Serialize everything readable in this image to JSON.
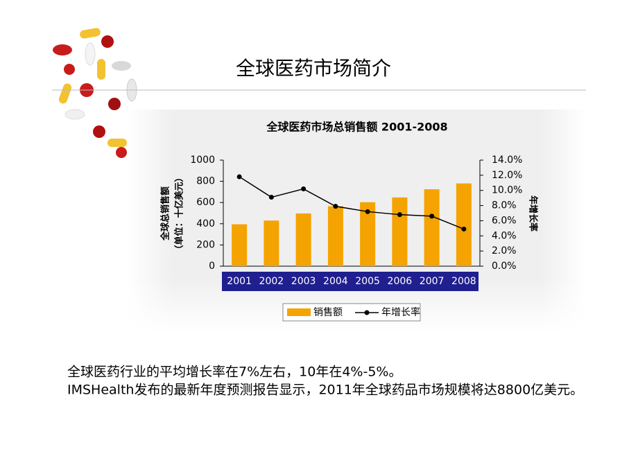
{
  "slide_title": "全球医药市场简介",
  "chart_data": {
    "type": "bar-line",
    "title": "全球医药市场总销售额 2001-2008",
    "ylabel": [
      "全球总销售额",
      "（单位：十亿美元）"
    ],
    "y2label": "年增长率",
    "categories": [
      "2001",
      "2002",
      "2003",
      "2004",
      "2005",
      "2006",
      "2007",
      "2008"
    ],
    "series": [
      {
        "name": "销售额",
        "color": "#f5a300",
        "type": "bar",
        "values": [
          395,
          430,
          497,
          565,
          603,
          648,
          725,
          780
        ]
      },
      {
        "name": "年增长率",
        "color": "#000000",
        "type": "line",
        "axis": "y2",
        "values": [
          11.8,
          9.1,
          10.2,
          7.9,
          7.2,
          6.8,
          6.6,
          4.9
        ]
      }
    ],
    "ylim": [
      0,
      1000
    ],
    "yticks": [
      0,
      200,
      400,
      600,
      800,
      1000
    ],
    "y2lim": [
      0,
      14
    ],
    "y2ticks": [
      {
        "value": 0,
        "label": "0.0%"
      },
      {
        "value": 2,
        "label": "2.0%"
      },
      {
        "value": 4,
        "label": "4.0%"
      },
      {
        "value": 6,
        "label": "6.0%"
      },
      {
        "value": 8,
        "label": "8.0%"
      },
      {
        "value": 10,
        "label": "10.0%"
      },
      {
        "value": 12,
        "label": "12.0%"
      },
      {
        "value": 14,
        "label": "14.0%"
      }
    ],
    "legend": "bottom"
  },
  "body": [
    "全球医药行业的平均增长率在7%左右，10年在4%-5%。",
    "IMSHealth发布的最新年度预测报告显示，2011年全球药品市场规模将达8800亿美元。"
  ]
}
